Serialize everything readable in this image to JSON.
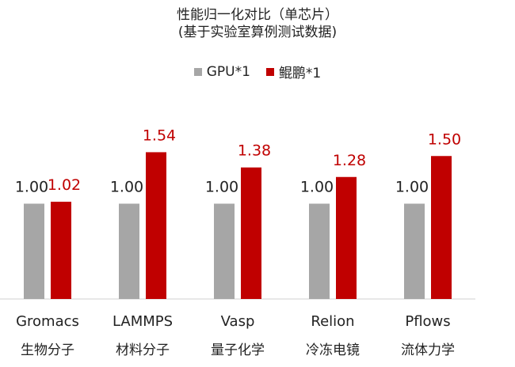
{
  "chart_data": {
    "type": "bar",
    "title": "性能归一化对比（单芯片）",
    "subtitle": "(基于实验室算例测试数据)",
    "categories": [
      "Gromacs",
      "LAMMPS",
      "Vasp",
      "Relion",
      "Pflows"
    ],
    "category_sublabels": [
      "生物分子",
      "材料分子",
      "量子化学",
      "冷冻电镜",
      "流体力学"
    ],
    "series": [
      {
        "name": "GPU*1",
        "color": "#a6a6a6",
        "values": [
          1.0,
          1.0,
          1.0,
          1.0,
          1.0
        ],
        "labels": [
          "1.00",
          "1.00",
          "1.00",
          "1.00",
          "1.00"
        ],
        "label_color": "#222222"
      },
      {
        "name": "鲲鹏*1",
        "color": "#c00000",
        "values": [
          1.02,
          1.54,
          1.38,
          1.28,
          1.5
        ],
        "labels": [
          "1.02",
          "1.54",
          "1.38",
          "1.28",
          "1.50"
        ],
        "label_color": "#c00000"
      }
    ],
    "legend_position": "top",
    "grid": false,
    "ylim": [
      0,
      1.9
    ]
  }
}
